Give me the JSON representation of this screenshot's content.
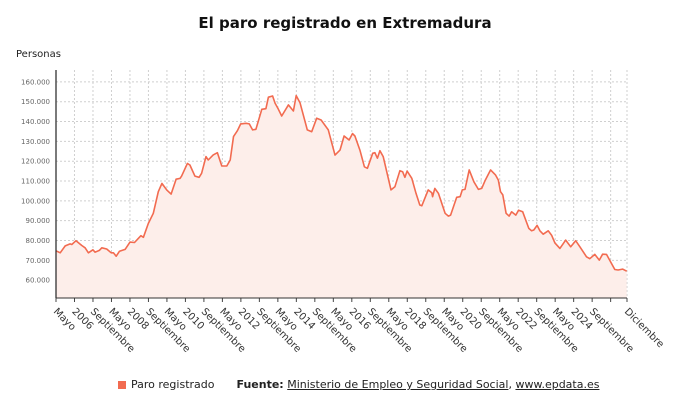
{
  "chart_data": {
    "type": "area",
    "title": "El paro registrado en Extremadura",
    "ylabel": "Personas",
    "xlabel": "",
    "ylim": [
      51000,
      166000
    ],
    "xlim": [
      2005.33,
      2025.92
    ],
    "yticks": [
      60000,
      70000,
      80000,
      90000,
      100000,
      110000,
      120000,
      130000,
      140000,
      150000,
      160000
    ],
    "ytick_labels": [
      "60.000",
      "70.000",
      "80.000",
      "90.000",
      "100.000",
      "110.000",
      "120.000",
      "130.000",
      "140.000",
      "150.000",
      "160.000"
    ],
    "xtick_labels": [
      "Mayo",
      "2006",
      "Septiembre",
      "Mayo",
      "2008",
      "Septiembre",
      "Mayo",
      "2010",
      "Septiembre",
      "Mayo",
      "2012",
      "Septiembre",
      "Mayo",
      "2014",
      "Septiembre",
      "Mayo",
      "2016",
      "Septiembre",
      "Mayo",
      "2018",
      "Septiembre",
      "Mayo",
      "2020",
      "Septiembre",
      "Mayo",
      "2022",
      "Septiembre",
      "Mayo",
      "2024",
      "Septiembre"
    ],
    "xtick_end_label": "Diciembre",
    "grid": true,
    "series": [
      {
        "name": "Paro registrado",
        "color": "#f26b50",
        "fill": "#fdeeea",
        "points": [
          [
            2005.33,
            74800
          ],
          [
            2005.48,
            73800
          ],
          [
            2005.66,
            77300
          ],
          [
            2005.84,
            78300
          ],
          [
            2005.9,
            78000
          ],
          [
            2006.05,
            79900
          ],
          [
            2006.26,
            77500
          ],
          [
            2006.38,
            76300
          ],
          [
            2006.5,
            73800
          ],
          [
            2006.66,
            75300
          ],
          [
            2006.74,
            74100
          ],
          [
            2006.89,
            75000
          ],
          [
            2006.98,
            76300
          ],
          [
            2007.16,
            75700
          ],
          [
            2007.32,
            73800
          ],
          [
            2007.4,
            73800
          ],
          [
            2007.5,
            72100
          ],
          [
            2007.62,
            74600
          ],
          [
            2007.82,
            75500
          ],
          [
            2008.0,
            79200
          ],
          [
            2008.16,
            79000
          ],
          [
            2008.39,
            82400
          ],
          [
            2008.48,
            81600
          ],
          [
            2008.66,
            88600
          ],
          [
            2008.84,
            93700
          ],
          [
            2009.02,
            104600
          ],
          [
            2009.15,
            108800
          ],
          [
            2009.32,
            105500
          ],
          [
            2009.48,
            103400
          ],
          [
            2009.66,
            110900
          ],
          [
            2009.8,
            111300
          ],
          [
            2009.86,
            112500
          ],
          [
            2010.07,
            118900
          ],
          [
            2010.16,
            118100
          ],
          [
            2010.34,
            112500
          ],
          [
            2010.49,
            111900
          ],
          [
            2010.58,
            113900
          ],
          [
            2010.74,
            122300
          ],
          [
            2010.82,
            120600
          ],
          [
            2011.0,
            123200
          ],
          [
            2011.15,
            124300
          ],
          [
            2011.31,
            117600
          ],
          [
            2011.49,
            117600
          ],
          [
            2011.61,
            120600
          ],
          [
            2011.73,
            132400
          ],
          [
            2011.87,
            135400
          ],
          [
            2011.99,
            138800
          ],
          [
            2012.18,
            139100
          ],
          [
            2012.3,
            138800
          ],
          [
            2012.42,
            135800
          ],
          [
            2012.54,
            136100
          ],
          [
            2012.75,
            146200
          ],
          [
            2012.9,
            146500
          ],
          [
            2012.99,
            152300
          ],
          [
            2013.14,
            152900
          ],
          [
            2013.23,
            149200
          ],
          [
            2013.35,
            146200
          ],
          [
            2013.47,
            142800
          ],
          [
            2013.71,
            148400
          ],
          [
            2013.89,
            145300
          ],
          [
            2013.99,
            153100
          ],
          [
            2014.13,
            149500
          ],
          [
            2014.39,
            135800
          ],
          [
            2014.55,
            134900
          ],
          [
            2014.73,
            141700
          ],
          [
            2014.89,
            140800
          ],
          [
            2015.15,
            135800
          ],
          [
            2015.39,
            123100
          ],
          [
            2015.57,
            125600
          ],
          [
            2015.72,
            132700
          ],
          [
            2015.9,
            130700
          ],
          [
            2016.02,
            133900
          ],
          [
            2016.11,
            132700
          ],
          [
            2016.29,
            125600
          ],
          [
            2016.45,
            117200
          ],
          [
            2016.56,
            116400
          ],
          [
            2016.75,
            124000
          ],
          [
            2016.83,
            124300
          ],
          [
            2016.92,
            121500
          ],
          [
            2017.01,
            125300
          ],
          [
            2017.13,
            122300
          ],
          [
            2017.41,
            105500
          ],
          [
            2017.55,
            107100
          ],
          [
            2017.73,
            115200
          ],
          [
            2017.83,
            114700
          ],
          [
            2017.91,
            111900
          ],
          [
            2017.99,
            115000
          ],
          [
            2018.16,
            111400
          ],
          [
            2018.31,
            103800
          ],
          [
            2018.45,
            97900
          ],
          [
            2018.52,
            97500
          ],
          [
            2018.75,
            105500
          ],
          [
            2018.88,
            104100
          ],
          [
            2018.91,
            102100
          ],
          [
            2018.99,
            106300
          ],
          [
            2019.12,
            103800
          ],
          [
            2019.36,
            93700
          ],
          [
            2019.48,
            92300
          ],
          [
            2019.56,
            92800
          ],
          [
            2019.78,
            101800
          ],
          [
            2019.9,
            102100
          ],
          [
            2019.98,
            105500
          ],
          [
            2020.08,
            105800
          ],
          [
            2020.23,
            115600
          ],
          [
            2020.4,
            109600
          ],
          [
            2020.56,
            105800
          ],
          [
            2020.68,
            106300
          ],
          [
            2020.8,
            110100
          ],
          [
            2021.0,
            115600
          ],
          [
            2021.18,
            113000
          ],
          [
            2021.28,
            110500
          ],
          [
            2021.36,
            104600
          ],
          [
            2021.44,
            103000
          ],
          [
            2021.56,
            93700
          ],
          [
            2021.67,
            92300
          ],
          [
            2021.76,
            94500
          ],
          [
            2021.91,
            92800
          ],
          [
            2022.01,
            95300
          ],
          [
            2022.16,
            94500
          ],
          [
            2022.38,
            86100
          ],
          [
            2022.48,
            84900
          ],
          [
            2022.56,
            85300
          ],
          [
            2022.68,
            87600
          ],
          [
            2022.78,
            84900
          ],
          [
            2022.9,
            83200
          ],
          [
            2023.08,
            84900
          ],
          [
            2023.2,
            82700
          ],
          [
            2023.32,
            78800
          ],
          [
            2023.5,
            76000
          ],
          [
            2023.71,
            80200
          ],
          [
            2023.89,
            76800
          ],
          [
            2024.07,
            79900
          ],
          [
            2024.22,
            76800
          ],
          [
            2024.46,
            71800
          ],
          [
            2024.58,
            70800
          ],
          [
            2024.76,
            73000
          ],
          [
            2024.92,
            70100
          ],
          [
            2025.04,
            73100
          ],
          [
            2025.18,
            73000
          ],
          [
            2025.48,
            65400
          ],
          [
            2025.6,
            65100
          ],
          [
            2025.76,
            65600
          ],
          [
            2025.91,
            64500
          ]
        ]
      }
    ]
  },
  "legend": {
    "label": "Paro registrado"
  },
  "source": {
    "prefix": "Fuente:",
    "org": "Ministerio de Empleo y Seguridad Social",
    "sep": ",",
    "site": "www.epdata.es"
  }
}
